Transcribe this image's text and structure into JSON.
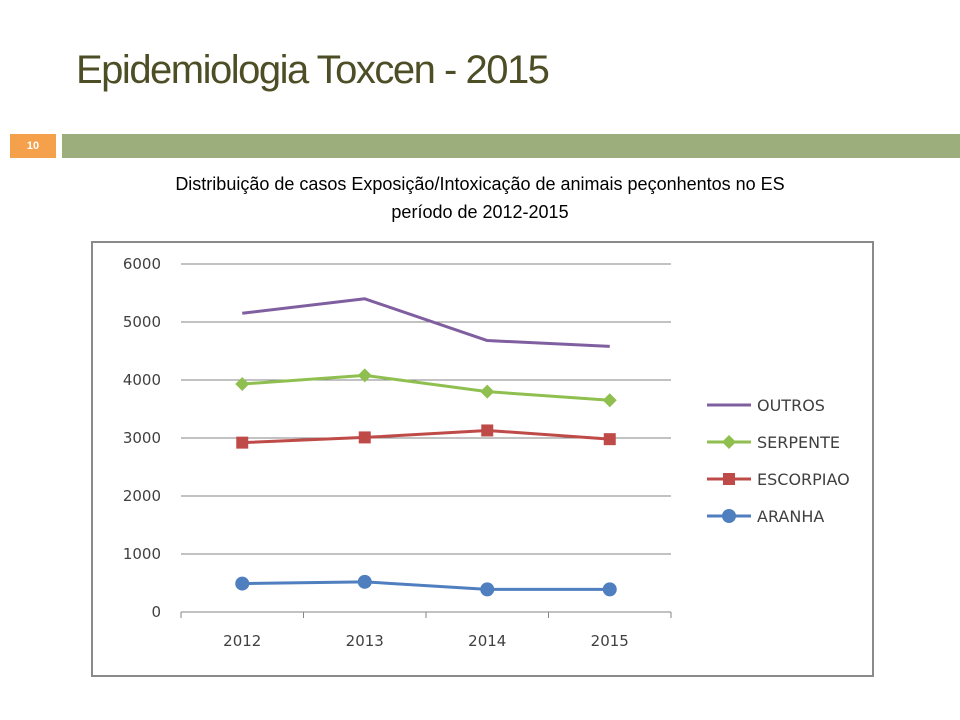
{
  "slide": {
    "title": "Epidemiologia Toxcen - 2015",
    "number": "10",
    "caption_line1": "Distribuição de casos Exposição/Intoxicação de animais peçonhentos no ES",
    "caption_line2": "período de 2012-2015"
  },
  "colors": {
    "title_bar": "#9bae7c",
    "number_badge": "#f5a04a"
  },
  "chart_data": {
    "type": "line",
    "title": "",
    "xlabel": "",
    "ylabel": "",
    "categories": [
      "2012",
      "2013",
      "2014",
      "2015"
    ],
    "ylim": [
      0,
      6000
    ],
    "yticks": [
      0,
      1000,
      2000,
      3000,
      4000,
      5000,
      6000
    ],
    "grid": true,
    "legend_position": "right",
    "series": [
      {
        "name": "OUTROS",
        "values": [
          5150,
          5400,
          4680,
          4580
        ],
        "color": "#7f5fa0",
        "marker": "none"
      },
      {
        "name": "SERPENTE",
        "values": [
          3930,
          4080,
          3800,
          3650
        ],
        "color": "#8fbf4f",
        "marker": "diamond"
      },
      {
        "name": "ESCORPIAO",
        "values": [
          2920,
          3010,
          3130,
          2980
        ],
        "color": "#bf4b48",
        "marker": "square"
      },
      {
        "name": "ARANHA",
        "values": [
          490,
          520,
          390,
          390
        ],
        "color": "#4f7fbf",
        "marker": "circle"
      }
    ]
  }
}
